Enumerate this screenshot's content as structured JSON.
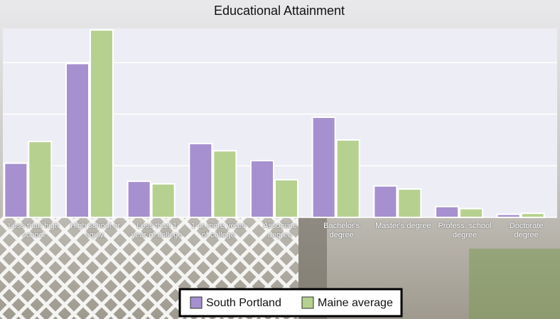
{
  "chart_data": {
    "type": "bar",
    "title": "Educational Attainment",
    "categories": [
      "Less than high school",
      "High school or equiv.",
      "Less than 1 year of college",
      "1 or more years of college",
      "Associate degree",
      "Bachelor's degree",
      "Master's degree",
      "Profess. school degree",
      "Doctorate degree"
    ],
    "series": [
      {
        "name": "South Portland",
        "color": "#a690cf",
        "values": [
          10.5,
          29.8,
          7.0,
          14.3,
          11.0,
          19.4,
          6.1,
          2.1,
          0.6
        ]
      },
      {
        "name": "Maine average",
        "color": "#b6d18f",
        "values": [
          14.7,
          36.3,
          6.5,
          12.9,
          7.3,
          15.0,
          5.5,
          1.7,
          0.8
        ]
      }
    ],
    "ylim": [
      0,
      36.6
    ],
    "yticks": [
      0,
      10,
      20,
      30
    ],
    "grid": true
  }
}
